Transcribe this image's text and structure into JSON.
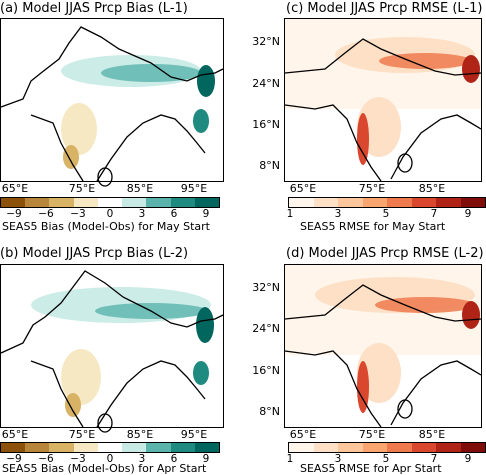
{
  "panels": [
    {
      "title": "(a) Model JJAS Prcp Bias (L-1)",
      "cbar_label": "SEAS5 Bias (Model-Obs) for May Start"
    },
    {
      "title": "(c) Model JJAS Prcp RMSE (L-1)",
      "cbar_label": "SEAS5 RMSE for May Start"
    },
    {
      "title": "(b) Model JJAS Prcp Bias (L-2)",
      "cbar_label": "SEAS5 Bias (Model-Obs) for Apr Start"
    },
    {
      "title": "(d) Model JJAS Prcp RMSE (L-2)",
      "cbar_label": "SEAS5 RMSE for Apr Start"
    }
  ],
  "lon_ticks": [
    "65°E",
    "75°E",
    "85°E",
    "95°E"
  ],
  "lat_ticks": [
    "32°N",
    "24°N",
    "16°N",
    "8°N"
  ],
  "bias_ticks": [
    "−9",
    "−6",
    "−3",
    "0",
    "3",
    "6",
    "9"
  ],
  "rmse_ticks": [
    "1",
    "3",
    "5",
    "7",
    "9"
  ],
  "colors": {
    "bias_scale": [
      "#8c510a",
      "#b8863b",
      "#d8b365",
      "#f6e8c3",
      "#ffffff",
      "#c7eae5",
      "#5ab4ac",
      "#1f8a80",
      "#01665e"
    ],
    "rmse_scale": [
      "#fff5eb",
      "#fde0c5",
      "#fdc79b",
      "#f9a56f",
      "#ee7a4e",
      "#d9472e",
      "#b02418",
      "#7f0d0a"
    ]
  }
}
